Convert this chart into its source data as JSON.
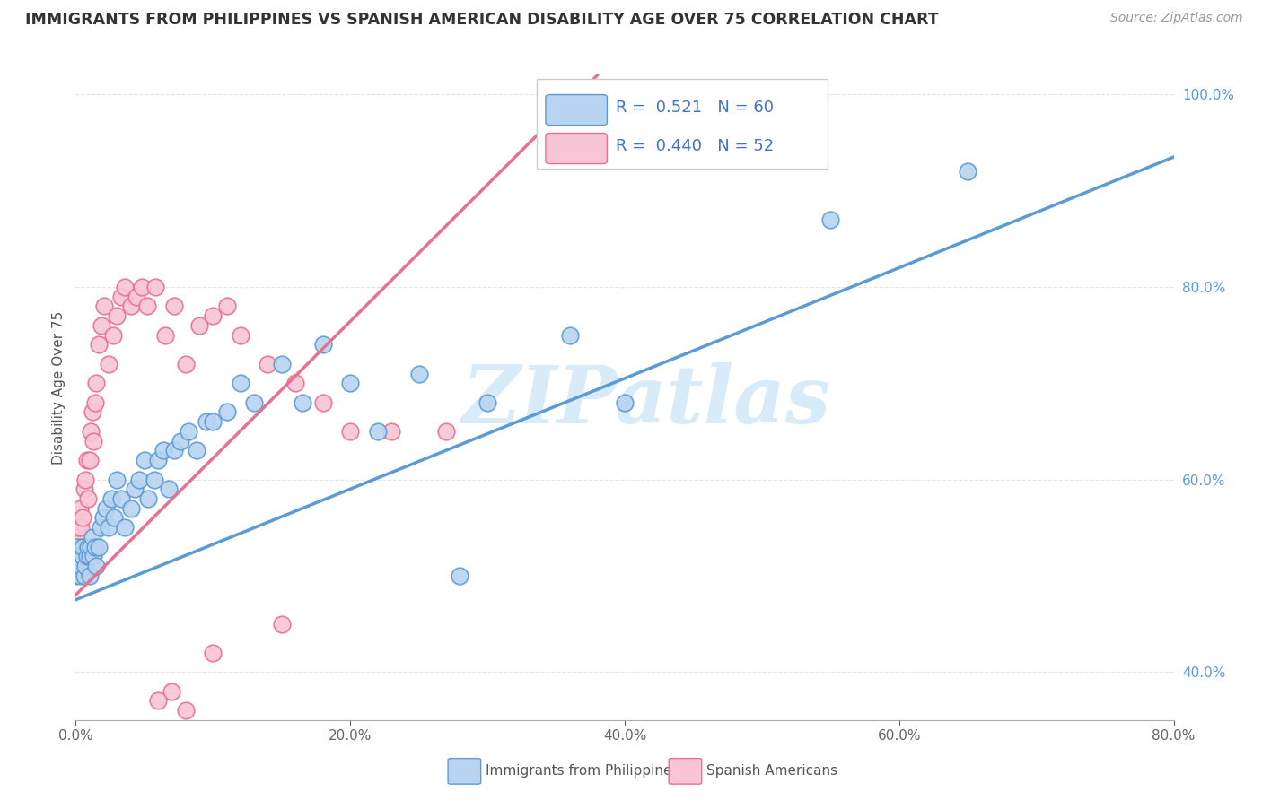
{
  "title": "IMMIGRANTS FROM PHILIPPINES VS SPANISH AMERICAN DISABILITY AGE OVER 75 CORRELATION CHART",
  "source": "Source: ZipAtlas.com",
  "xlabel_blue": "Immigrants from Philippines",
  "xlabel_pink": "Spanish Americans",
  "ylabel": "Disability Age Over 75",
  "r_blue": 0.521,
  "n_blue": 60,
  "r_pink": 0.44,
  "n_pink": 52,
  "color_blue_fill": "#b8d4f0",
  "color_blue_edge": "#5b9bd5",
  "color_pink_fill": "#f7c5d5",
  "color_pink_edge": "#e87090",
  "color_blue_text": "#4472c4",
  "color_ytick": "#5b9bd5",
  "color_grid": "#dddddd",
  "watermark_text": "ZIPatlas",
  "watermark_color": "#d0e8f8",
  "xlim": [
    0.0,
    0.8
  ],
  "ylim": [
    0.35,
    1.04
  ],
  "x_ticks": [
    0.0,
    0.2,
    0.4,
    0.6,
    0.8
  ],
  "y_ticks": [
    0.4,
    0.6,
    0.8,
    1.0
  ],
  "blue_x": [
    0.0,
    0.001,
    0.001,
    0.002,
    0.002,
    0.003,
    0.004,
    0.005,
    0.005,
    0.006,
    0.007,
    0.008,
    0.009,
    0.01,
    0.01,
    0.011,
    0.012,
    0.013,
    0.014,
    0.015,
    0.017,
    0.018,
    0.02,
    0.022,
    0.024,
    0.026,
    0.028,
    0.03,
    0.033,
    0.036,
    0.04,
    0.043,
    0.046,
    0.05,
    0.053,
    0.057,
    0.06,
    0.064,
    0.068,
    0.072,
    0.076,
    0.082,
    0.088,
    0.095,
    0.1,
    0.11,
    0.12,
    0.13,
    0.15,
    0.165,
    0.18,
    0.2,
    0.22,
    0.25,
    0.28,
    0.3,
    0.36,
    0.4,
    0.55,
    0.65
  ],
  "blue_y": [
    0.52,
    0.52,
    0.53,
    0.51,
    0.52,
    0.5,
    0.51,
    0.52,
    0.53,
    0.5,
    0.51,
    0.52,
    0.53,
    0.5,
    0.52,
    0.53,
    0.54,
    0.52,
    0.53,
    0.51,
    0.53,
    0.55,
    0.56,
    0.57,
    0.55,
    0.58,
    0.56,
    0.6,
    0.58,
    0.55,
    0.57,
    0.59,
    0.6,
    0.62,
    0.58,
    0.6,
    0.62,
    0.63,
    0.59,
    0.63,
    0.64,
    0.65,
    0.63,
    0.66,
    0.66,
    0.67,
    0.7,
    0.68,
    0.72,
    0.68,
    0.74,
    0.7,
    0.65,
    0.71,
    0.5,
    0.68,
    0.75,
    0.68,
    0.87,
    0.92
  ],
  "pink_x": [
    0.0,
    0.0,
    0.0,
    0.001,
    0.001,
    0.002,
    0.002,
    0.003,
    0.003,
    0.004,
    0.005,
    0.006,
    0.007,
    0.008,
    0.009,
    0.01,
    0.011,
    0.012,
    0.013,
    0.014,
    0.015,
    0.017,
    0.019,
    0.021,
    0.024,
    0.027,
    0.03,
    0.033,
    0.036,
    0.04,
    0.044,
    0.048,
    0.052,
    0.058,
    0.065,
    0.072,
    0.08,
    0.09,
    0.1,
    0.11,
    0.12,
    0.14,
    0.16,
    0.18,
    0.2,
    0.23,
    0.27,
    0.15,
    0.1,
    0.07,
    0.08,
    0.06
  ],
  "pink_y": [
    0.5,
    0.51,
    0.53,
    0.52,
    0.54,
    0.52,
    0.55,
    0.53,
    0.57,
    0.55,
    0.56,
    0.59,
    0.6,
    0.62,
    0.58,
    0.62,
    0.65,
    0.67,
    0.64,
    0.68,
    0.7,
    0.74,
    0.76,
    0.78,
    0.72,
    0.75,
    0.77,
    0.79,
    0.8,
    0.78,
    0.79,
    0.8,
    0.78,
    0.8,
    0.75,
    0.78,
    0.72,
    0.76,
    0.77,
    0.78,
    0.75,
    0.72,
    0.7,
    0.68,
    0.65,
    0.65,
    0.65,
    0.45,
    0.42,
    0.38,
    0.36,
    0.37
  ],
  "blue_trend_x": [
    0.0,
    0.8
  ],
  "blue_trend_y": [
    0.475,
    0.935
  ],
  "pink_trend_x": [
    0.0,
    0.38
  ],
  "pink_trend_y": [
    0.48,
    1.02
  ]
}
